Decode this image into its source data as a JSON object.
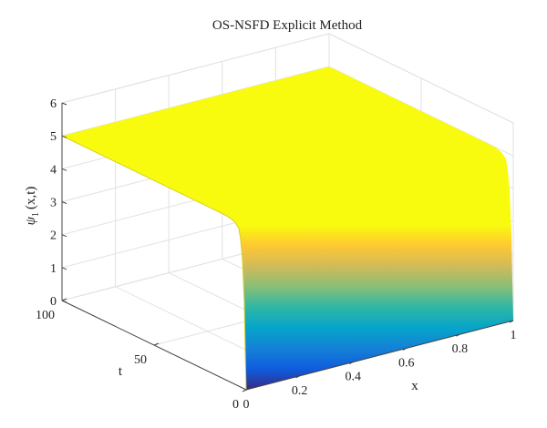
{
  "chart_data": {
    "type": "surface",
    "title": "OS-NSFD Explicit Method",
    "xlabel": "x",
    "ylabel": "t",
    "zlabel": "ψ",
    "zlabel_subscript": "1",
    "zlabel_suffix": "(x,t)",
    "xlim": [
      0,
      1
    ],
    "ylim": [
      0,
      100
    ],
    "zlim": [
      0,
      6
    ],
    "x_ticks": [
      0,
      0.2,
      0.4,
      0.6,
      0.8,
      1
    ],
    "x_tick_labels": [
      "0",
      "0.2",
      "0.4",
      "0.6",
      "0.8",
      "1"
    ],
    "y_ticks": [
      0,
      50,
      100
    ],
    "y_tick_labels": [
      "0",
      "50",
      "100"
    ],
    "z_ticks": [
      0,
      1,
      2,
      3,
      4,
      5,
      6
    ],
    "z_tick_labels": [
      "0",
      "1",
      "2",
      "3",
      "4",
      "5",
      "6"
    ],
    "grid": true,
    "colormap": "parula",
    "colormap_colors": [
      "#352a87",
      "#0f5cdd",
      "#1481d6",
      "#06a4ca",
      "#2eb7a4",
      "#87bf77",
      "#d1bb59",
      "#fec832",
      "#f9fb0e"
    ],
    "surface_profile": {
      "description_values": "psi(x,t) sampled along t; independent of x",
      "t": [
        0,
        0.5,
        1,
        2,
        3,
        4,
        6,
        8,
        10,
        15,
        20,
        30,
        50,
        75,
        100
      ],
      "psi": [
        0.0,
        1.2,
        2.6,
        3.9,
        4.5,
        4.8,
        4.92,
        4.97,
        4.99,
        5.0,
        5.0,
        5.0,
        5.0,
        5.0,
        5.0
      ]
    }
  }
}
